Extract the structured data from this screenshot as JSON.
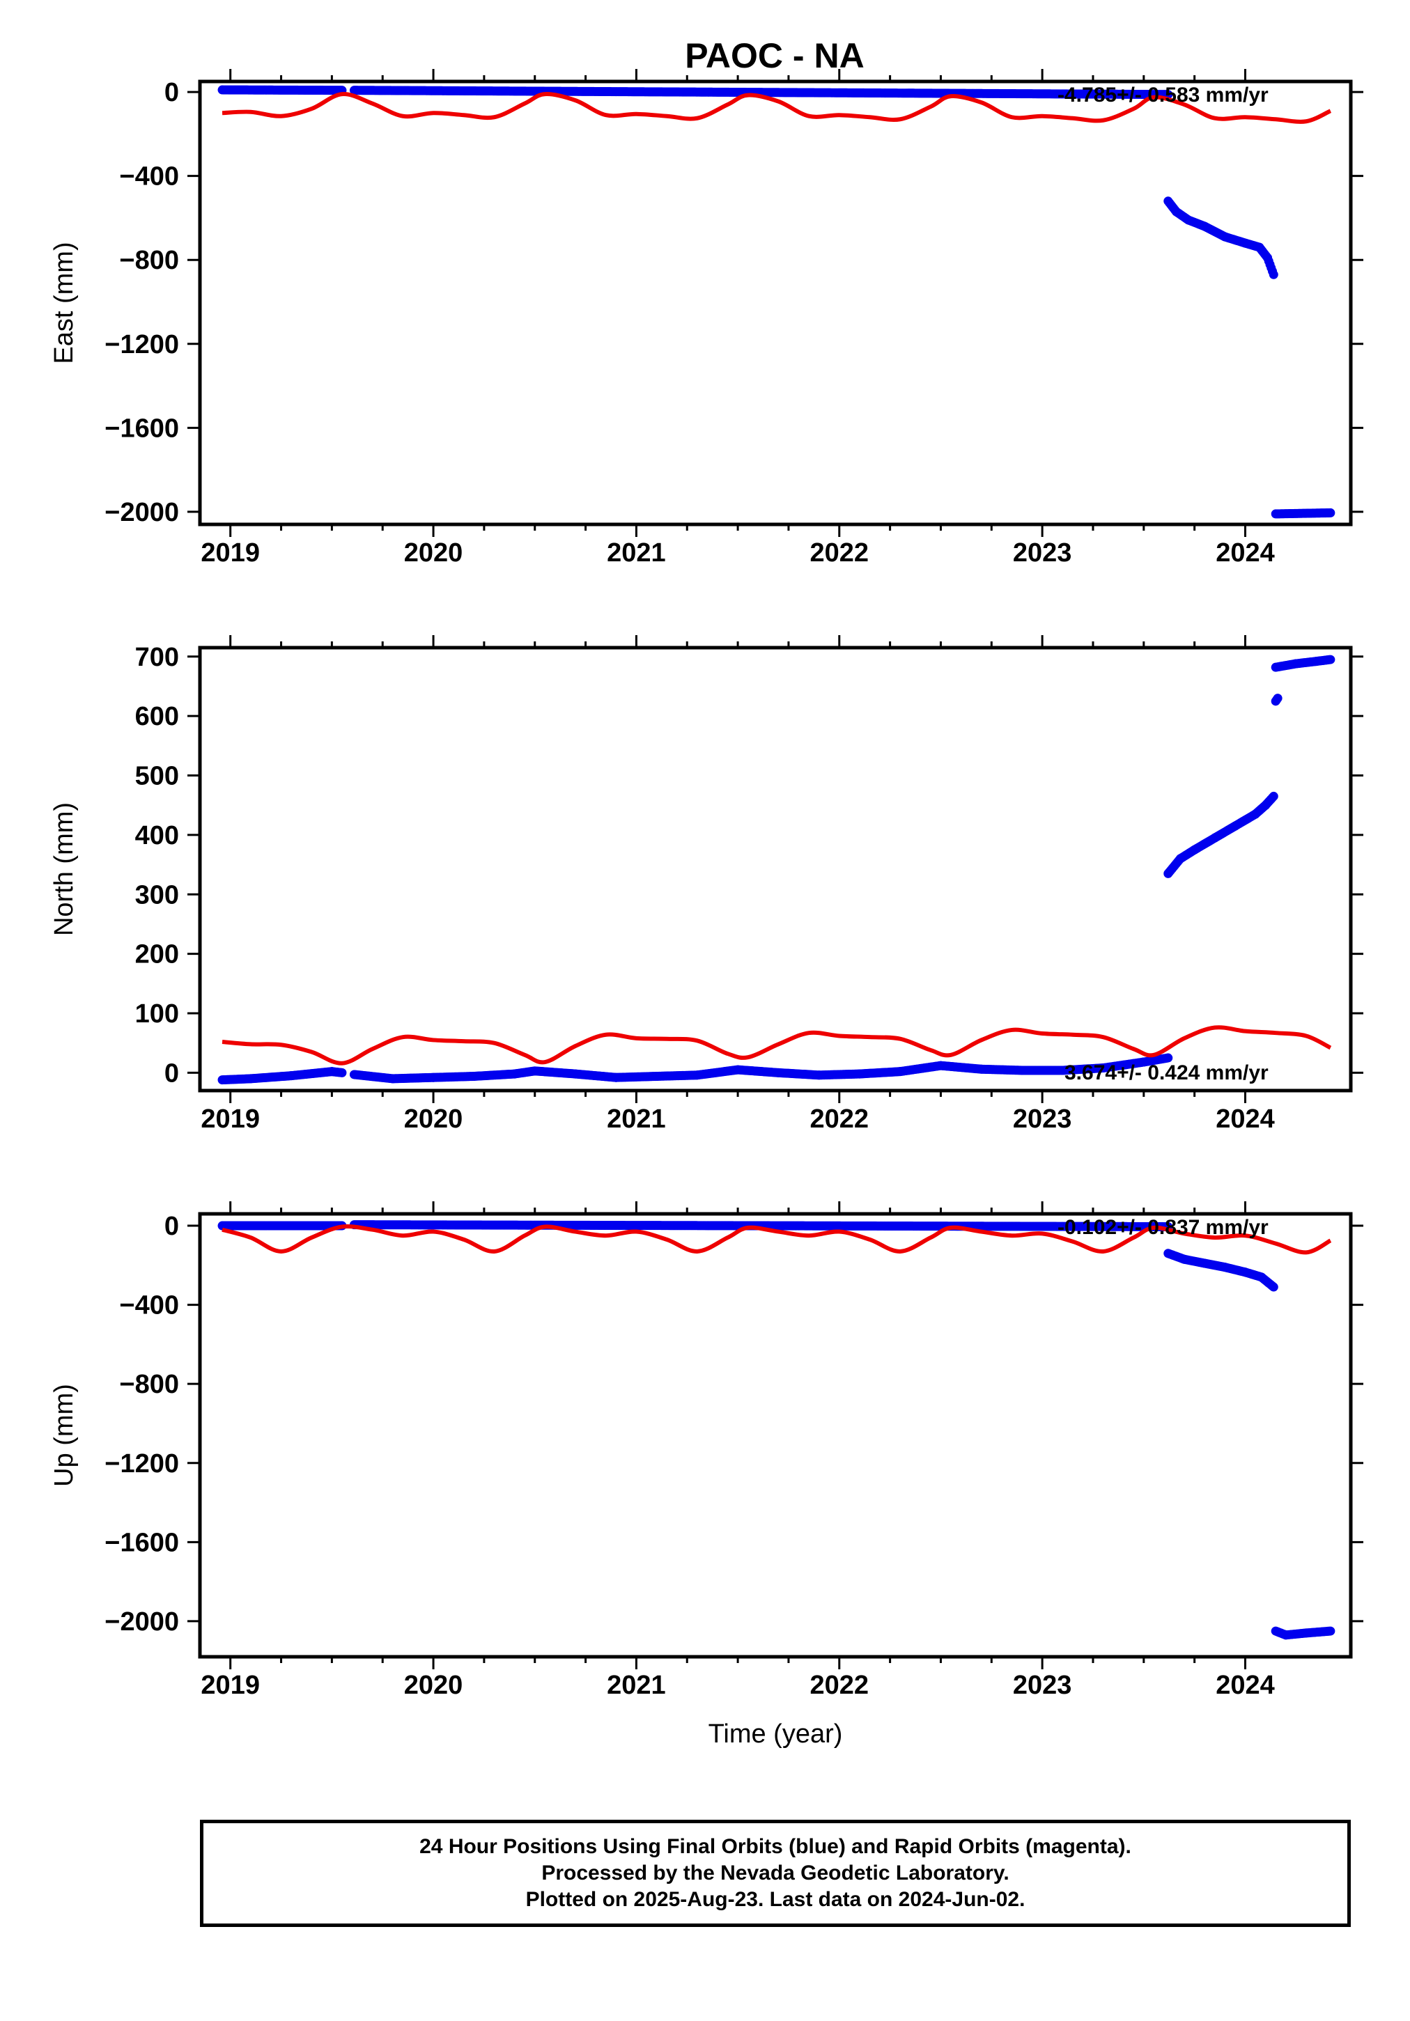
{
  "title": "PAOC - NA",
  "footer": {
    "line1": "24 Hour Positions Using Final Orbits (blue) and Rapid Orbits (magenta).",
    "line2": "Processed by the Nevada Geodetic Laboratory.",
    "line3": "Plotted on 2025-Aug-23. Last data on 2024-Jun-02."
  },
  "colors": {
    "data": "#0000ee",
    "model": "#ee0000",
    "axis": "#000000"
  },
  "chart_data": [
    {
      "type": "scatter",
      "component": "east",
      "ylabel": "East (mm)",
      "xlabel": "",
      "xlim": [
        2018.85,
        2024.52
      ],
      "ylim": [
        -2060,
        50
      ],
      "xticks": [
        2019,
        2020,
        2021,
        2022,
        2023,
        2024
      ],
      "yticks": [
        0,
        -400,
        -800,
        -1200,
        -1600,
        -2000
      ],
      "rate_text": "-4.785+/- 0.583 mm/yr",
      "series": [
        {
          "segments": [
            {
              "x": [
                2018.96,
                2019.55
              ],
              "y": [
                10,
                8
              ]
            },
            {
              "x": [
                2019.61,
                2023.62
              ],
              "y": [
                8,
                -12
              ]
            },
            {
              "x": [
                2023.62,
                2023.66,
                2023.72,
                2023.8,
                2023.9,
                2024.0,
                2024.07,
                2024.11,
                2024.14
              ],
              "y": [
                -520,
                -570,
                -610,
                -640,
                -690,
                -720,
                -740,
                -790,
                -870
              ]
            },
            {
              "x": [
                2024.15,
                2024.42
              ],
              "y": [
                -2010,
                -2005
              ]
            }
          ]
        }
      ],
      "model": {
        "x": [
          2018.96,
          2019.1,
          2019.25,
          2019.4,
          2019.55,
          2019.7,
          2019.85,
          2020.0,
          2020.15,
          2020.3,
          2020.45,
          2020.55,
          2020.7,
          2020.85,
          2021.0,
          2021.15,
          2021.3,
          2021.45,
          2021.55,
          2021.7,
          2021.85,
          2022.0,
          2022.15,
          2022.3,
          2022.45,
          2022.55,
          2022.7,
          2022.85,
          2023.0,
          2023.15,
          2023.3,
          2023.45,
          2023.55,
          2023.7,
          2023.85,
          2024.0,
          2024.15,
          2024.3,
          2024.42
        ],
        "y": [
          -100,
          -95,
          -115,
          -80,
          -10,
          -55,
          -115,
          -100,
          -110,
          -120,
          -55,
          -10,
          -40,
          -110,
          -105,
          -115,
          -125,
          -60,
          -15,
          -45,
          -115,
          -110,
          -120,
          -130,
          -70,
          -20,
          -50,
          -120,
          -115,
          -125,
          -135,
          -80,
          -25,
          -60,
          -125,
          -120,
          -130,
          -140,
          -90
        ]
      }
    },
    {
      "type": "scatter",
      "component": "north",
      "ylabel": "North (mm)",
      "xlabel": "",
      "xlim": [
        2018.85,
        2024.52
      ],
      "ylim": [
        -30,
        715
      ],
      "xticks": [
        2019,
        2020,
        2021,
        2022,
        2023,
        2024
      ],
      "yticks": [
        0,
        100,
        200,
        300,
        400,
        500,
        600,
        700
      ],
      "rate_text": "3.674+/- 0.424 mm/yr",
      "series": [
        {
          "segments": [
            {
              "x": [
                2018.96,
                2019.1,
                2019.3,
                2019.5,
                2019.55
              ],
              "y": [
                -12,
                -10,
                -5,
                2,
                0
              ]
            },
            {
              "x": [
                2019.61,
                2019.8,
                2020.0,
                2020.2,
                2020.4,
                2020.5,
                2020.7,
                2020.9,
                2021.1,
                2021.3,
                2021.5,
                2021.7,
                2021.9,
                2022.1,
                2022.3,
                2022.5,
                2022.7,
                2022.9,
                2023.1,
                2023.3,
                2023.5,
                2023.62
              ],
              "y": [
                -3,
                -10,
                -8,
                -6,
                -2,
                3,
                -2,
                -8,
                -6,
                -4,
                5,
                0,
                -4,
                -2,
                2,
                12,
                6,
                4,
                4,
                8,
                18,
                25
              ]
            },
            {
              "x": [
                2023.62,
                2023.68,
                2023.75,
                2023.85,
                2023.95,
                2024.05,
                2024.1,
                2024.14
              ],
              "y": [
                335,
                360,
                375,
                395,
                415,
                435,
                450,
                465
              ]
            },
            {
              "x": [
                2024.15,
                2024.16
              ],
              "y": [
                625,
                630
              ]
            },
            {
              "x": [
                2024.15,
                2024.25,
                2024.35,
                2024.42
              ],
              "y": [
                682,
                688,
                692,
                695
              ]
            }
          ]
        }
      ],
      "model": {
        "x": [
          2018.96,
          2019.1,
          2019.25,
          2019.4,
          2019.55,
          2019.7,
          2019.85,
          2020.0,
          2020.15,
          2020.3,
          2020.45,
          2020.55,
          2020.7,
          2020.85,
          2021.0,
          2021.15,
          2021.3,
          2021.45,
          2021.55,
          2021.7,
          2021.85,
          2022.0,
          2022.15,
          2022.3,
          2022.45,
          2022.55,
          2022.7,
          2022.85,
          2023.0,
          2023.15,
          2023.3,
          2023.45,
          2023.55,
          2023.7,
          2023.85,
          2024.0,
          2024.15,
          2024.3,
          2024.42
        ],
        "y": [
          52,
          48,
          47,
          35,
          16,
          40,
          60,
          55,
          53,
          50,
          30,
          18,
          45,
          64,
          58,
          57,
          54,
          32,
          26,
          48,
          67,
          62,
          60,
          57,
          38,
          30,
          55,
          72,
          66,
          64,
          60,
          40,
          30,
          58,
          76,
          70,
          67,
          62,
          42
        ]
      }
    },
    {
      "type": "scatter",
      "component": "up",
      "ylabel": "Up (mm)",
      "xlabel": "Time (year)",
      "xlim": [
        2018.85,
        2024.52
      ],
      "ylim": [
        -2180,
        60
      ],
      "xticks": [
        2019,
        2020,
        2021,
        2022,
        2023,
        2024
      ],
      "yticks": [
        0,
        -400,
        -800,
        -1200,
        -1600,
        -2000
      ],
      "rate_text": "-0.102+/- 0.837 mm/yr",
      "series": [
        {
          "segments": [
            {
              "x": [
                2018.96,
                2019.55
              ],
              "y": [
                0,
                0
              ]
            },
            {
              "x": [
                2019.61,
                2023.62
              ],
              "y": [
                5,
                -5
              ]
            },
            {
              "x": [
                2023.62,
                2023.7,
                2023.8,
                2023.9,
                2024.0,
                2024.08,
                2024.14
              ],
              "y": [
                -140,
                -170,
                -190,
                -210,
                -235,
                -260,
                -310
              ]
            },
            {
              "x": [
                2024.15,
                2024.2,
                2024.3,
                2024.42
              ],
              "y": [
                -2050,
                -2070,
                -2060,
                -2050
              ]
            }
          ]
        }
      ],
      "model": {
        "x": [
          2018.96,
          2019.1,
          2019.25,
          2019.4,
          2019.55,
          2019.7,
          2019.85,
          2020.0,
          2020.15,
          2020.3,
          2020.45,
          2020.55,
          2020.7,
          2020.85,
          2021.0,
          2021.15,
          2021.3,
          2021.45,
          2021.55,
          2021.7,
          2021.85,
          2022.0,
          2022.15,
          2022.3,
          2022.45,
          2022.55,
          2022.7,
          2022.85,
          2023.0,
          2023.15,
          2023.3,
          2023.45,
          2023.55,
          2023.7,
          2023.85,
          2024.0,
          2024.15,
          2024.3,
          2024.42
        ],
        "y": [
          -20,
          -60,
          -130,
          -60,
          -5,
          -20,
          -50,
          -30,
          -70,
          -130,
          -50,
          -5,
          -30,
          -50,
          -30,
          -70,
          -130,
          -60,
          -10,
          -30,
          -50,
          -30,
          -70,
          -130,
          -60,
          -10,
          -30,
          -50,
          -40,
          -80,
          -130,
          -60,
          -10,
          -40,
          -60,
          -50,
          -90,
          -135,
          -75
        ]
      }
    }
  ]
}
